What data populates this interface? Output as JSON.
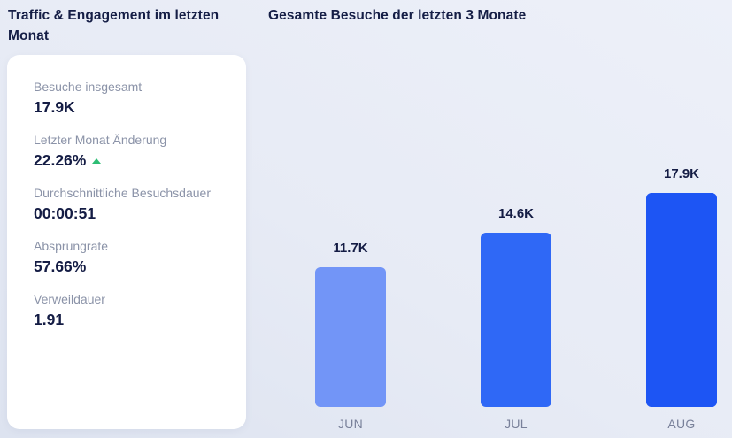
{
  "left_panel": {
    "title": "Traffic & Engagement im letzten Monat",
    "stats": [
      {
        "label": "Besuche insgesamt",
        "value": "17.9K"
      },
      {
        "label": "Letzter Monat Änderung",
        "value": "22.26%",
        "trend": "up"
      },
      {
        "label": "Durchschnittliche Besuchsdauer",
        "value": "00:00:51"
      },
      {
        "label": "Absprungrate",
        "value": "57.66%"
      },
      {
        "label": "Verweildauer",
        "value": "1.91"
      }
    ]
  },
  "chart_data": {
    "type": "bar",
    "title": "Gesamte Besuche der letzten 3 Monate",
    "categories": [
      "JUN",
      "JUL",
      "AUG"
    ],
    "values": [
      11700,
      14600,
      17900
    ],
    "value_labels": [
      "11.7K",
      "14.6K",
      "17.9K"
    ],
    "bar_colors": [
      "#7295F7",
      "#2F68F6",
      "#1D55F4"
    ],
    "ylim": [
      0,
      17900
    ],
    "grid": false,
    "legend": false,
    "xlabel": "",
    "ylabel": ""
  },
  "colors": {
    "trend_up_green": "#2DBD74",
    "heading_navy": "#151E46",
    "label_gray": "#8B93A8",
    "card_background": "#FFFFFF"
  }
}
